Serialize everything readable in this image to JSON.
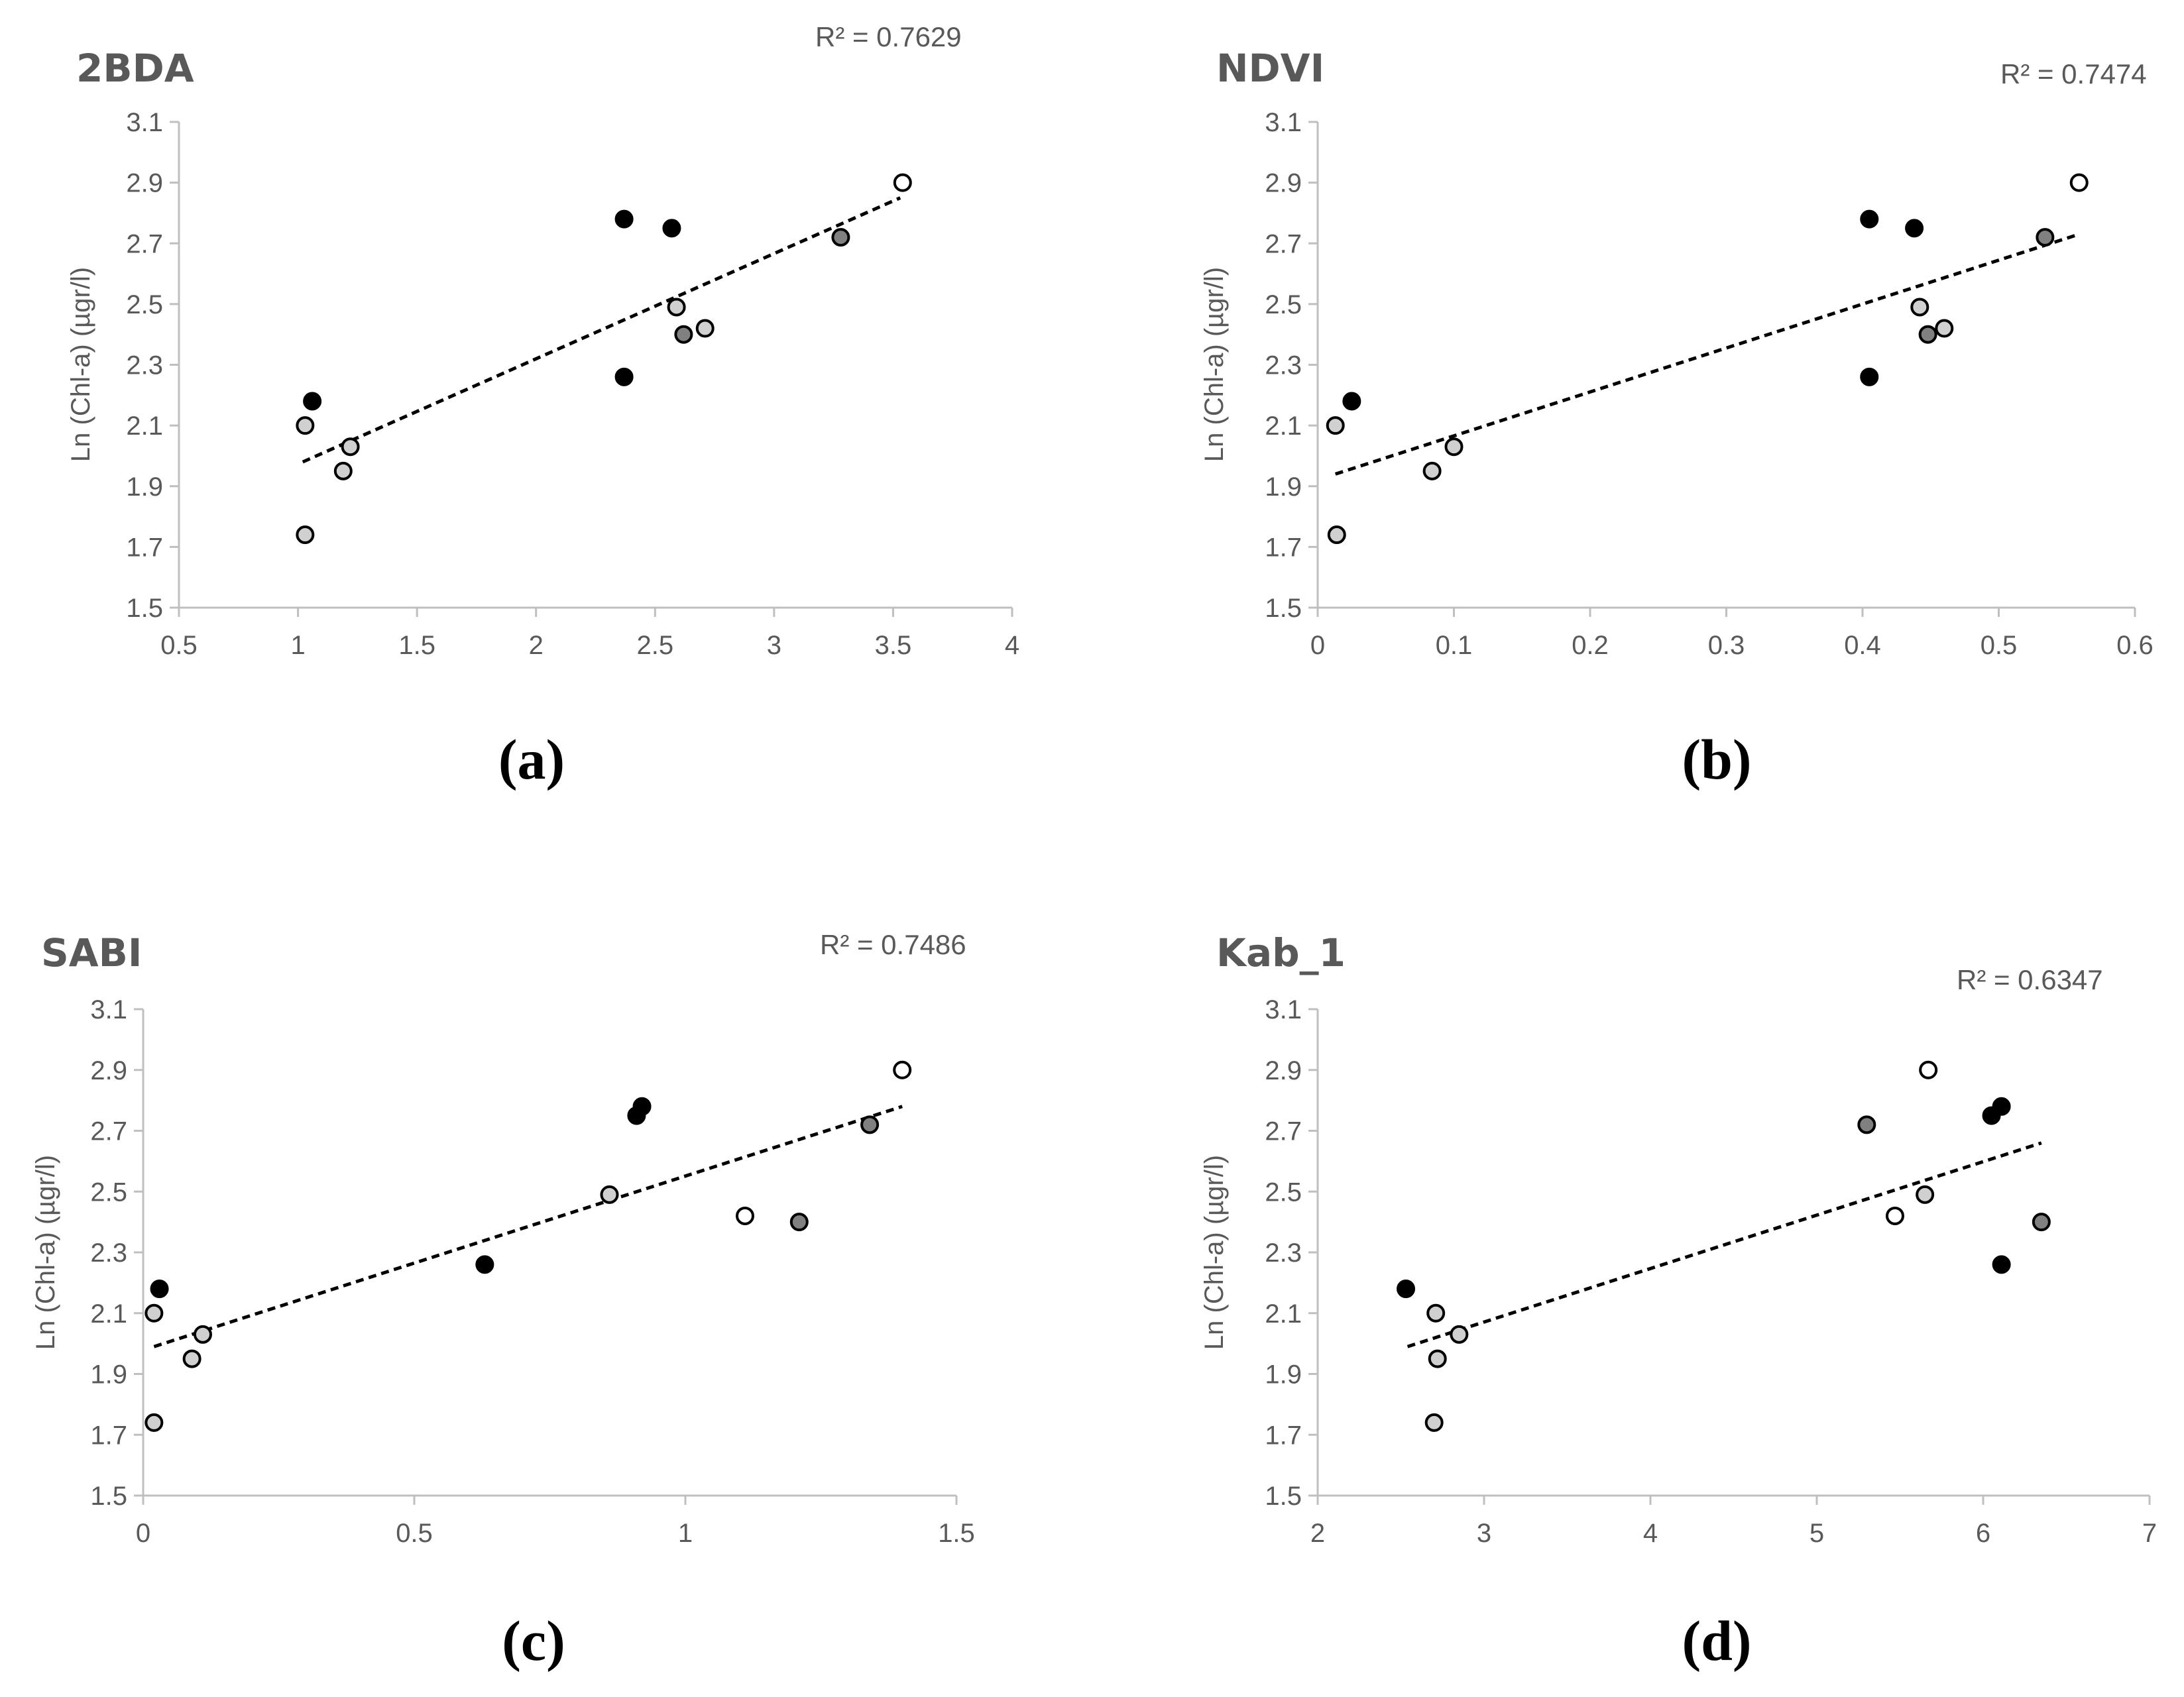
{
  "colors": {
    "black": "#000000",
    "gray": "#808080",
    "light": "#d0d0d0",
    "white": "#ffffff",
    "axis": "#bfbfbf",
    "text": "#595959"
  },
  "chart_data": [
    {
      "type": "scatter",
      "title": "2BDA",
      "caption": "(a)",
      "r2_label": "R² = 0.7629",
      "ylabel": "Ln (Chl-a) (µgr/l)",
      "xlabel": "",
      "xlim": [
        0.5,
        4
      ],
      "ylim": [
        1.5,
        3.1
      ],
      "xticks": [
        "0.5",
        "1",
        "1.5",
        "2",
        "2.5",
        "3",
        "3.5",
        "4"
      ],
      "yticks": [
        "1.5",
        "1.7",
        "1.9",
        "2.1",
        "2.3",
        "2.5",
        "2.7",
        "2.9",
        "3.1"
      ],
      "trendline": {
        "x": [
          1.02,
          3.53
        ],
        "y": [
          1.98,
          2.85
        ]
      },
      "points": [
        {
          "x": 1.06,
          "y": 2.18,
          "group": "black"
        },
        {
          "x": 2.37,
          "y": 2.78,
          "group": "black"
        },
        {
          "x": 2.57,
          "y": 2.75,
          "group": "black"
        },
        {
          "x": 2.37,
          "y": 2.26,
          "group": "black"
        },
        {
          "x": 3.28,
          "y": 2.72,
          "group": "gray"
        },
        {
          "x": 2.62,
          "y": 2.4,
          "group": "gray"
        },
        {
          "x": 1.03,
          "y": 2.1,
          "group": "light"
        },
        {
          "x": 1.22,
          "y": 2.03,
          "group": "light"
        },
        {
          "x": 1.19,
          "y": 1.95,
          "group": "light"
        },
        {
          "x": 1.03,
          "y": 1.74,
          "group": "light"
        },
        {
          "x": 2.59,
          "y": 2.49,
          "group": "light"
        },
        {
          "x": 2.71,
          "y": 2.42,
          "group": "light"
        },
        {
          "x": 3.54,
          "y": 2.9,
          "group": "white"
        }
      ]
    },
    {
      "type": "scatter",
      "title": "NDVI",
      "caption": "(b)",
      "r2_label": "R² = 0.7474",
      "ylabel": "Ln (Chl-a) (µgr/l)",
      "xlabel": "",
      "xlim": [
        0,
        0.6
      ],
      "ylim": [
        1.5,
        3.1
      ],
      "xticks": [
        "0",
        "0.1",
        "0.2",
        "0.3",
        "0.4",
        "0.5",
        "0.6"
      ],
      "yticks": [
        "1.5",
        "1.7",
        "1.9",
        "2.1",
        "2.3",
        "2.5",
        "2.7",
        "2.9",
        "3.1"
      ],
      "trendline": {
        "x": [
          0.013,
          0.559
        ],
        "y": [
          1.94,
          2.73
        ]
      },
      "points": [
        {
          "x": 0.025,
          "y": 2.18,
          "group": "black"
        },
        {
          "x": 0.405,
          "y": 2.78,
          "group": "black"
        },
        {
          "x": 0.438,
          "y": 2.75,
          "group": "black"
        },
        {
          "x": 0.405,
          "y": 2.26,
          "group": "black"
        },
        {
          "x": 0.534,
          "y": 2.72,
          "group": "gray"
        },
        {
          "x": 0.448,
          "y": 2.4,
          "group": "gray"
        },
        {
          "x": 0.013,
          "y": 2.1,
          "group": "light"
        },
        {
          "x": 0.1,
          "y": 2.03,
          "group": "light"
        },
        {
          "x": 0.084,
          "y": 1.95,
          "group": "light"
        },
        {
          "x": 0.014,
          "y": 1.74,
          "group": "light"
        },
        {
          "x": 0.442,
          "y": 2.49,
          "group": "light"
        },
        {
          "x": 0.46,
          "y": 2.42,
          "group": "light"
        },
        {
          "x": 0.559,
          "y": 2.9,
          "group": "white"
        }
      ]
    },
    {
      "type": "scatter",
      "title": "SABI",
      "caption": "(c)",
      "r2_label": "R² = 0.7486",
      "ylabel": "Ln (Chl-a) (µgr/l)",
      "xlabel": "",
      "xlim": [
        0,
        1.5
      ],
      "ylim": [
        1.5,
        3.1
      ],
      "xticks": [
        "0",
        "0.5",
        "1",
        "1.5"
      ],
      "yticks": [
        "1.5",
        "1.7",
        "1.9",
        "2.1",
        "2.3",
        "2.5",
        "2.7",
        "2.9",
        "3.1"
      ],
      "trendline": {
        "x": [
          0.02,
          1.4
        ],
        "y": [
          1.99,
          2.78
        ]
      },
      "points": [
        {
          "x": 0.03,
          "y": 2.18,
          "group": "black"
        },
        {
          "x": 0.92,
          "y": 2.78,
          "group": "black"
        },
        {
          "x": 0.91,
          "y": 2.75,
          "group": "black"
        },
        {
          "x": 0.63,
          "y": 2.26,
          "group": "black"
        },
        {
          "x": 1.34,
          "y": 2.72,
          "group": "gray"
        },
        {
          "x": 1.21,
          "y": 2.4,
          "group": "gray"
        },
        {
          "x": 0.02,
          "y": 2.1,
          "group": "light"
        },
        {
          "x": 0.11,
          "y": 2.03,
          "group": "light"
        },
        {
          "x": 0.09,
          "y": 1.95,
          "group": "light"
        },
        {
          "x": 0.02,
          "y": 1.74,
          "group": "light"
        },
        {
          "x": 0.86,
          "y": 2.49,
          "group": "light"
        },
        {
          "x": 1.11,
          "y": 2.42,
          "group": "white"
        },
        {
          "x": 1.4,
          "y": 2.9,
          "group": "white"
        }
      ]
    },
    {
      "type": "scatter",
      "title": "Kab_1",
      "caption": "(d)",
      "r2_label": "R² = 0.6347",
      "ylabel": "Ln (Chl-a) (µgr/l)",
      "xlabel": "",
      "xlim": [
        2,
        7
      ],
      "ylim": [
        1.5,
        3.1
      ],
      "xticks": [
        "2",
        "3",
        "4",
        "5",
        "6",
        "7"
      ],
      "yticks": [
        "1.5",
        "1.7",
        "1.9",
        "2.1",
        "2.3",
        "2.5",
        "2.7",
        "2.9",
        "3.1"
      ],
      "trendline": {
        "x": [
          2.54,
          6.35
        ],
        "y": [
          1.99,
          2.66
        ]
      },
      "points": [
        {
          "x": 2.53,
          "y": 2.18,
          "group": "black"
        },
        {
          "x": 6.11,
          "y": 2.78,
          "group": "black"
        },
        {
          "x": 6.05,
          "y": 2.75,
          "group": "black"
        },
        {
          "x": 6.11,
          "y": 2.26,
          "group": "black"
        },
        {
          "x": 5.3,
          "y": 2.72,
          "group": "gray"
        },
        {
          "x": 6.35,
          "y": 2.4,
          "group": "gray"
        },
        {
          "x": 2.71,
          "y": 2.1,
          "group": "light"
        },
        {
          "x": 2.85,
          "y": 2.03,
          "group": "light"
        },
        {
          "x": 2.72,
          "y": 1.95,
          "group": "light"
        },
        {
          "x": 2.7,
          "y": 1.74,
          "group": "light"
        },
        {
          "x": 5.65,
          "y": 2.49,
          "group": "light"
        },
        {
          "x": 5.47,
          "y": 2.42,
          "group": "white"
        },
        {
          "x": 5.67,
          "y": 2.9,
          "group": "white"
        }
      ]
    }
  ]
}
